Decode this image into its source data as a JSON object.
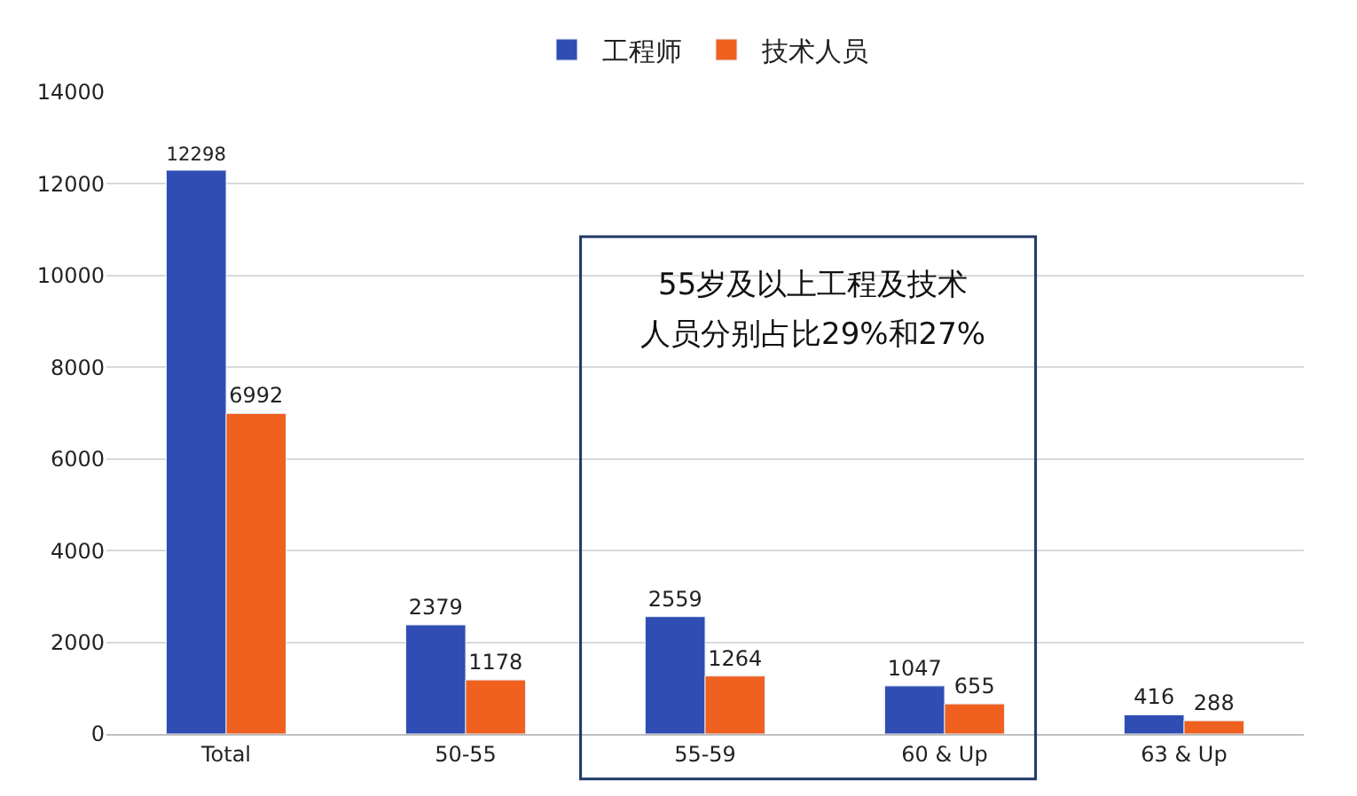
{
  "chart_data": {
    "type": "bar",
    "categories": [
      "Total",
      "50-55",
      "55-59",
      "60 & Up",
      "63 & Up"
    ],
    "series": [
      {
        "name": "工程师",
        "color": "#2f4db3",
        "values": [
          12298,
          2379,
          2559,
          1047,
          416
        ]
      },
      {
        "name": "技术人员",
        "color": "#f0601f",
        "values": [
          6992,
          1178,
          1264,
          655,
          288
        ]
      }
    ],
    "ylim": [
      0,
      14000
    ],
    "yticks": [
      0,
      2000,
      4000,
      6000,
      8000,
      10000,
      12000,
      14000
    ],
    "grid": "y",
    "legend": "top",
    "data_labels": true,
    "annotations": [
      "55岁及以上工程及技术",
      "人员分别占比29%和27%"
    ]
  }
}
